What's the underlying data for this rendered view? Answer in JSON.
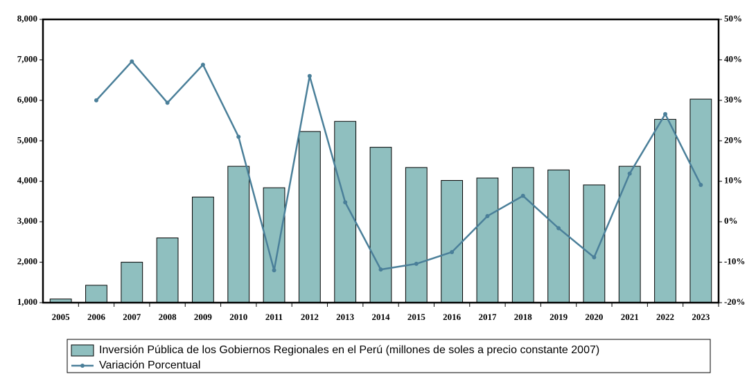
{
  "chart_data": {
    "type": "bar-line",
    "categories": [
      "2005",
      "2006",
      "2007",
      "2008",
      "2009",
      "2010",
      "2011",
      "2012",
      "2013",
      "2014",
      "2015",
      "2016",
      "2017",
      "2018",
      "2019",
      "2020",
      "2021",
      "2022",
      "2023"
    ],
    "series": [
      {
        "name": "Inversión Pública de los Gobiernos Regionales en el Perú (millones de soles a precio constante 2007)",
        "color": "#8fbfbf",
        "type": "bar",
        "values": [
          1090,
          1430,
          2000,
          2600,
          3610,
          4370,
          3840,
          5230,
          5480,
          4840,
          4340,
          4020,
          4080,
          4340,
          4280,
          3910,
          4370,
          5530,
          6030
        ]
      },
      {
        "name": "Variación Porcentual",
        "color": "#4a7f99",
        "type": "line",
        "axis": "y2",
        "values": [
          null,
          30,
          39.6,
          29.4,
          38.8,
          21,
          -12,
          36,
          4.8,
          -11.8,
          -10.4,
          -7.5,
          1.4,
          6.4,
          -1.6,
          -8.8,
          11.9,
          26.6,
          9.1
        ]
      }
    ],
    "ylim": [
      1000,
      8000
    ],
    "yticks": [
      {
        "value": 1000,
        "label": "1,000"
      },
      {
        "value": 2000,
        "label": "2,000"
      },
      {
        "value": 3000,
        "label": "3,000"
      },
      {
        "value": 4000,
        "label": "4,000"
      },
      {
        "value": 5000,
        "label": "5,000"
      },
      {
        "value": 6000,
        "label": "6,000"
      },
      {
        "value": 7000,
        "label": "7,000"
      },
      {
        "value": 8000,
        "label": "8,000"
      }
    ],
    "y2lim": [
      -20,
      50
    ],
    "y2ticks": [
      {
        "value": -20,
        "label": "-20%"
      },
      {
        "value": -10,
        "label": "-10%"
      },
      {
        "value": 0,
        "label": "0%"
      },
      {
        "value": 10,
        "label": "10%"
      },
      {
        "value": 20,
        "label": "20%"
      },
      {
        "value": 30,
        "label": "30%"
      },
      {
        "value": 40,
        "label": "40%"
      },
      {
        "value": 50,
        "label": "50%"
      }
    ],
    "legend": "bottom"
  }
}
